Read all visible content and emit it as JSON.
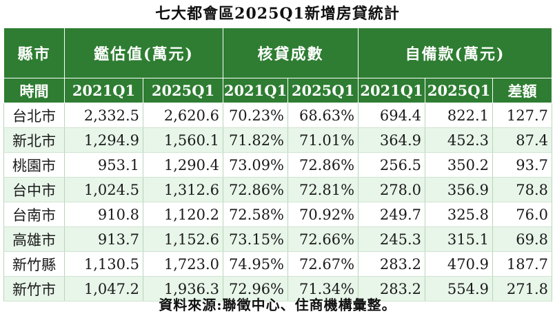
{
  "title": "七大都會區2025Q1新增房貸統計",
  "headers": {
    "city": "縣市",
    "appraisal": "鑑估值(萬元)",
    "ltv": "核貸成數",
    "downpayment": "自備款(萬元)",
    "time": "時間",
    "y2021": "2021Q1",
    "y2025": "2025Q1",
    "diff": "差額"
  },
  "rows": [
    {
      "city": "台北市",
      "a21": "2,332.5",
      "a25": "2,620.6",
      "l21": "70.23%",
      "l25": "68.63%",
      "d21": "694.4",
      "d25": "822.1",
      "diff": "127.7"
    },
    {
      "city": "新北市",
      "a21": "1,294.9",
      "a25": "1,560.1",
      "l21": "71.82%",
      "l25": "71.01%",
      "d21": "364.9",
      "d25": "452.3",
      "diff": "87.4"
    },
    {
      "city": "桃園市",
      "a21": "953.1",
      "a25": "1,290.4",
      "l21": "73.09%",
      "l25": "72.86%",
      "d21": "256.5",
      "d25": "350.2",
      "diff": "93.7"
    },
    {
      "city": "台中市",
      "a21": "1,024.5",
      "a25": "1,312.6",
      "l21": "72.86%",
      "l25": "72.81%",
      "d21": "278.0",
      "d25": "356.9",
      "diff": "78.8"
    },
    {
      "city": "台南市",
      "a21": "910.8",
      "a25": "1,120.2",
      "l21": "72.58%",
      "l25": "70.92%",
      "d21": "249.7",
      "d25": "325.8",
      "diff": "76.0"
    },
    {
      "city": "高雄市",
      "a21": "913.7",
      "a25": "1,152.6",
      "l21": "73.15%",
      "l25": "72.66%",
      "d21": "245.3",
      "d25": "315.1",
      "diff": "69.8"
    },
    {
      "city": "新竹縣",
      "a21": "1,130.5",
      "a25": "1,723.0",
      "l21": "74.95%",
      "l25": "72.67%",
      "d21": "283.2",
      "d25": "470.9",
      "diff": "187.7"
    },
    {
      "city": "新竹市",
      "a21": "1,047.2",
      "a25": "1,936.3",
      "l21": "72.96%",
      "l25": "71.34%",
      "d21": "283.2",
      "d25": "554.9",
      "diff": "271.8"
    }
  ],
  "footer": "資料來源:聯徵中心、住商機構彙整。",
  "colors": {
    "header_bg": "#2e7d32",
    "alt_row": "#e8f5e9"
  }
}
